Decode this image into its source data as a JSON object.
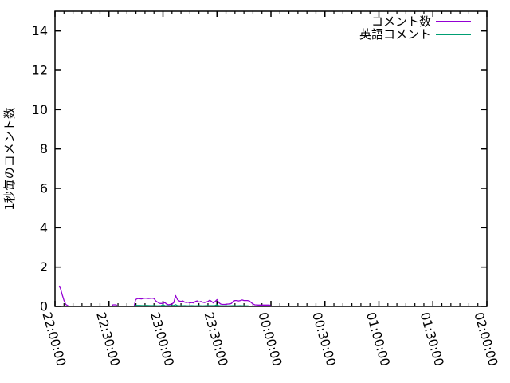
{
  "chart_data": {
    "type": "line",
    "title": "",
    "xlabel": "",
    "ylabel": "1秒毎のコメント数",
    "grid": false,
    "background": "#ffffff",
    "axis_color": "#000000",
    "x_axis": {
      "unit": "time (HH:MM:SS)",
      "range_minutes": [
        0,
        240
      ],
      "tick_minutes": [
        0,
        30,
        60,
        90,
        120,
        150,
        180,
        210,
        240
      ],
      "tick_labels": [
        "22:00:00",
        "22:30:00",
        "23:00:00",
        "23:30:00",
        "00:00:00",
        "00:30:00",
        "01:00:00",
        "01:30:00",
        "02:00:00"
      ],
      "minor_tick_interval_minutes": 5,
      "label_rotation_deg": 74
    },
    "y_axis": {
      "range": [
        0,
        15
      ],
      "ticks": [
        0,
        2,
        4,
        6,
        8,
        10,
        12,
        14
      ]
    },
    "legend": {
      "position": "top-right-inside",
      "entries": [
        {
          "label": "コメント数",
          "color": "#9400d3"
        },
        {
          "label": "英語コメント",
          "color": "#009e73"
        }
      ]
    },
    "series": [
      {
        "name": "コメント数",
        "color": "#9400d3",
        "x_unit": "minutes_after_22:00",
        "segments": [
          [
            [
              2.2,
              1.05
            ],
            [
              3,
              0.92
            ],
            [
              4,
              0.6
            ],
            [
              5,
              0.3
            ],
            [
              6,
              0.1
            ],
            [
              7.5,
              0.02
            ]
          ],
          [
            [
              31.8,
              0.02
            ],
            [
              32.2,
              0.08
            ],
            [
              34,
              0.08
            ],
            [
              34.5,
              0.02
            ]
          ],
          [
            [
              44,
              0.02
            ],
            [
              44.8,
              0.35
            ],
            [
              46,
              0.4
            ],
            [
              48,
              0.38
            ],
            [
              50,
              0.42
            ],
            [
              52,
              0.4
            ],
            [
              54,
              0.42
            ],
            [
              55,
              0.4
            ],
            [
              56,
              0.28
            ],
            [
              57,
              0.22
            ],
            [
              58,
              0.16
            ],
            [
              59,
              0.15
            ],
            [
              60,
              0.16
            ],
            [
              61,
              0.2
            ],
            [
              62,
              0.12
            ],
            [
              63,
              0.08
            ],
            [
              64,
              0.1
            ],
            [
              65,
              0.12
            ],
            [
              66,
              0.2
            ],
            [
              67,
              0.55
            ],
            [
              68,
              0.35
            ],
            [
              69,
              0.28
            ],
            [
              70,
              0.25
            ],
            [
              71,
              0.28
            ],
            [
              72,
              0.22
            ],
            [
              73,
              0.2
            ],
            [
              74,
              0.22
            ],
            [
              75,
              0.18
            ],
            [
              76,
              0.2
            ],
            [
              77,
              0.18
            ],
            [
              78,
              0.25
            ],
            [
              79,
              0.28
            ],
            [
              80,
              0.22
            ],
            [
              81,
              0.25
            ],
            [
              82,
              0.22
            ],
            [
              83,
              0.2
            ],
            [
              84,
              0.22
            ],
            [
              85,
              0.25
            ],
            [
              86,
              0.32
            ],
            [
              87,
              0.25
            ],
            [
              88,
              0.18
            ],
            [
              89,
              0.25
            ],
            [
              90,
              0.35
            ],
            [
              91,
              0.2
            ],
            [
              92,
              0.12
            ],
            [
              93,
              0.1
            ],
            [
              94,
              0.1
            ],
            [
              95,
              0.1
            ],
            [
              96,
              0.12
            ],
            [
              97,
              0.12
            ],
            [
              98,
              0.15
            ],
            [
              99,
              0.25
            ],
            [
              100,
              0.3
            ],
            [
              101,
              0.3
            ],
            [
              102,
              0.28
            ],
            [
              103,
              0.3
            ],
            [
              104,
              0.33
            ],
            [
              105,
              0.3
            ],
            [
              106,
              0.3
            ],
            [
              107,
              0.3
            ],
            [
              108,
              0.28
            ],
            [
              109,
              0.2
            ],
            [
              110,
              0.12
            ],
            [
              111,
              0.08
            ],
            [
              113,
              0.07
            ],
            [
              115,
              0.07
            ],
            [
              117,
              0.07
            ],
            [
              119,
              0.07
            ],
            [
              119.8,
              0.05
            ]
          ]
        ]
      },
      {
        "name": "英語コメント",
        "color": "#009e73",
        "x_unit": "minutes_after_22:00",
        "segments": [
          [
            [
              44,
              0.02
            ],
            [
              45,
              0.05
            ],
            [
              47,
              0.05
            ],
            [
              49,
              0.04
            ],
            [
              51,
              0.05
            ],
            [
              53,
              0.04
            ],
            [
              55,
              0.04
            ],
            [
              57,
              0.03
            ],
            [
              59,
              0.04
            ],
            [
              60,
              0.08
            ],
            [
              61,
              0.04
            ],
            [
              63,
              0.03
            ],
            [
              65,
              0.04
            ],
            [
              66,
              0.05
            ],
            [
              67,
              0.09
            ],
            [
              68,
              0.04
            ],
            [
              70,
              0.03
            ],
            [
              72,
              0.04
            ],
            [
              74,
              0.03
            ],
            [
              76,
              0.04
            ],
            [
              78,
              0.03
            ],
            [
              80,
              0.04
            ],
            [
              82,
              0.03
            ],
            [
              84,
              0.04
            ],
            [
              86,
              0.04
            ],
            [
              88,
              0.04
            ],
            [
              89,
              0.05
            ],
            [
              90,
              0.08
            ],
            [
              91,
              0.04
            ],
            [
              93,
              0.03
            ],
            [
              95,
              0.03
            ],
            [
              97,
              0.03
            ],
            [
              99,
              0.04
            ],
            [
              101,
              0.03
            ],
            [
              103,
              0.04
            ],
            [
              105,
              0.03
            ],
            [
              107,
              0.03
            ],
            [
              108,
              0.02
            ]
          ]
        ]
      }
    ]
  }
}
